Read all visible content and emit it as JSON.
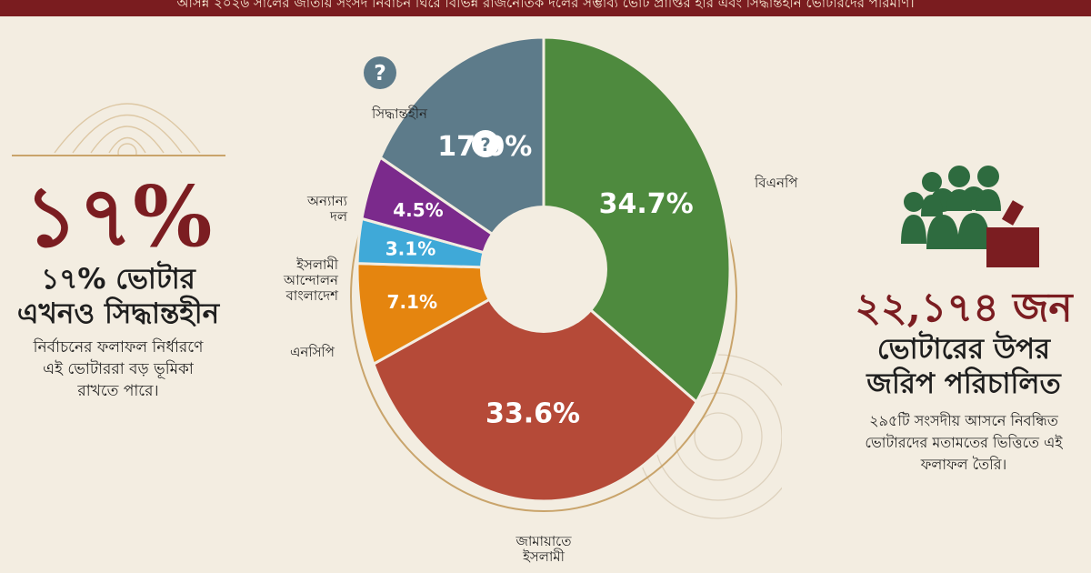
{
  "banner": "আসন্ন ২০২৬ সালের জাতীয় সংসদ নির্বাচন ঘিরে বিভিন্ন রাজনৈতিক দলের সম্ভাব্য ভোট প্রাপ্তির হার এবং সিদ্ধান্তহীন ভোটারদের পরিমাণ।",
  "left": {
    "big": "১৭%",
    "head1": "১৭% ভোটার",
    "head2": "এখনও সিদ্ধান্তহীন",
    "desc1": "নির্বাচনের ফলাফল নির্ধারণে",
    "desc2": "এই ভোটাররা বড় ভূমিকা",
    "desc3": "রাখতে পারে।"
  },
  "right": {
    "count": "২২,১৭৪ জন",
    "head1": "ভোটারের উপর",
    "head2": "জরিপ পরিচালিত",
    "desc1": "২৯৫টি সংসদীয় আসনে নিবন্ধিত",
    "desc2": "ভোটারদের মতামতের ভিত্তিতে এই",
    "desc3": "ফলাফল তৈরি।",
    "icon": "people-ballot-icon"
  },
  "colors": {
    "accent": "#7b1d21",
    "green": "#4e8a3e",
    "red": "#b54a38",
    "orange": "#e5850f",
    "blue": "#3fa9d8",
    "purple": "#7b2a8c",
    "slate": "#5d7b8a"
  },
  "chart_data": {
    "type": "pie",
    "donut": true,
    "categories": [
      "বিএনপি",
      "জামায়াতে ইসলামী",
      "এনসিপি",
      "ইসলামী আন্দোলন বাংলাদেশ",
      "অন্যান্য দল",
      "সিদ্ধান্তহীন"
    ],
    "values": [
      34.7,
      33.6,
      7.1,
      3.1,
      4.5,
      17.0
    ],
    "value_labels": [
      "34.7%",
      "33.6%",
      "7.1%",
      "3.1%",
      "4.5%",
      "17.0%"
    ],
    "colors": [
      "#4e8a3e",
      "#b54a38",
      "#e5850f",
      "#3fa9d8",
      "#7b2a8c",
      "#5d7b8a"
    ],
    "label_lines": [
      [
        "বিএনপি"
      ],
      [
        "জামায়াতে",
        "ইসলামী"
      ],
      [
        "এনসিপি"
      ],
      [
        "ইসলামী",
        "আন্দোলন",
        "বাংলাদেশ"
      ],
      [
        "অন্যান্য",
        "দল"
      ],
      [
        "সিদ্ধান্তহীন"
      ]
    ]
  }
}
